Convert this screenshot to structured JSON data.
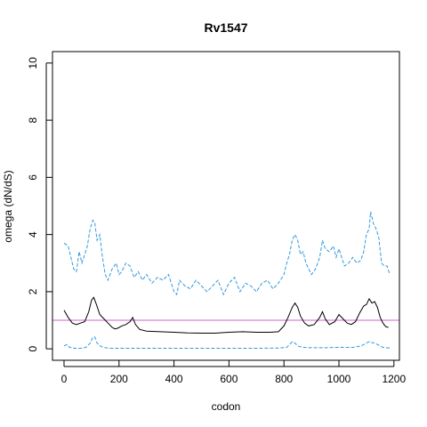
{
  "chart_data": {
    "type": "line",
    "title": "Rv1547",
    "xlabel": "codon",
    "ylabel": "omega (dN/dS)",
    "xlim": [
      -42,
      1220
    ],
    "ylim": [
      -0.4,
      10.4
    ],
    "x_ticks": [
      0,
      200,
      400,
      600,
      800,
      1000,
      1200
    ],
    "y_ticks": [
      0,
      2,
      4,
      6,
      8,
      10
    ],
    "grid": false,
    "legend": "none",
    "reference_line": {
      "y": 1,
      "color": "#cc66cc"
    },
    "colors": {
      "estimate": "#000000",
      "upper": "#3399dd",
      "lower": "#3399dd",
      "axis": "#000000"
    },
    "series": [
      {
        "role": "estimate",
        "style": "solid",
        "x": [
          0,
          15,
          30,
          45,
          60,
          75,
          90,
          100,
          108,
          118,
          130,
          145,
          160,
          175,
          185,
          195,
          210,
          225,
          240,
          250,
          260,
          275,
          300,
          350,
          400,
          450,
          500,
          550,
          600,
          650,
          700,
          750,
          780,
          800,
          815,
          830,
          840,
          850,
          860,
          875,
          890,
          910,
          930,
          940,
          950,
          965,
          985,
          1000,
          1015,
          1030,
          1045,
          1060,
          1075,
          1090,
          1100,
          1110,
          1120,
          1130,
          1140,
          1150,
          1160,
          1170,
          1180
        ],
        "y": [
          1.35,
          1.1,
          0.9,
          0.85,
          0.9,
          0.95,
          1.3,
          1.7,
          1.8,
          1.55,
          1.2,
          1.05,
          0.9,
          0.75,
          0.7,
          0.72,
          0.8,
          0.85,
          0.95,
          1.1,
          0.85,
          0.68,
          0.62,
          0.6,
          0.58,
          0.56,
          0.55,
          0.55,
          0.58,
          0.6,
          0.58,
          0.58,
          0.6,
          0.8,
          1.1,
          1.45,
          1.6,
          1.45,
          1.15,
          0.9,
          0.8,
          0.85,
          1.1,
          1.3,
          1.05,
          0.85,
          0.95,
          1.2,
          1.05,
          0.9,
          0.85,
          0.95,
          1.25,
          1.5,
          1.55,
          1.75,
          1.6,
          1.65,
          1.45,
          1.1,
          0.9,
          0.78,
          0.75
        ]
      },
      {
        "role": "upper",
        "style": "dashed",
        "x": [
          0,
          15,
          25,
          35,
          45,
          55,
          65,
          75,
          85,
          95,
          105,
          112,
          120,
          130,
          140,
          150,
          160,
          175,
          190,
          200,
          210,
          225,
          240,
          255,
          270,
          285,
          300,
          320,
          340,
          360,
          380,
          400,
          410,
          420,
          440,
          460,
          480,
          500,
          520,
          540,
          560,
          580,
          600,
          620,
          640,
          660,
          680,
          700,
          720,
          740,
          760,
          780,
          800,
          810,
          820,
          830,
          840,
          850,
          860,
          870,
          880,
          890,
          900,
          915,
          930,
          940,
          950,
          965,
          980,
          990,
          1000,
          1010,
          1020,
          1035,
          1050,
          1065,
          1080,
          1090,
          1100,
          1110,
          1115,
          1125,
          1135,
          1145,
          1155,
          1165,
          1175,
          1185
        ],
        "y": [
          3.7,
          3.6,
          3.2,
          2.8,
          2.7,
          3.4,
          3.0,
          3.3,
          3.6,
          4.2,
          4.5,
          4.4,
          3.8,
          4.0,
          3.2,
          2.6,
          2.4,
          2.8,
          3.0,
          2.6,
          2.7,
          3.0,
          2.9,
          2.5,
          2.7,
          2.4,
          2.6,
          2.3,
          2.5,
          2.4,
          2.6,
          2.0,
          1.9,
          2.4,
          2.2,
          2.1,
          2.4,
          2.2,
          2.0,
          2.2,
          2.4,
          1.9,
          2.3,
          2.5,
          2.0,
          2.3,
          2.2,
          2.0,
          2.3,
          2.4,
          2.1,
          2.3,
          2.6,
          3.0,
          3.3,
          3.8,
          4.0,
          3.8,
          3.3,
          3.4,
          3.0,
          2.8,
          2.6,
          2.8,
          3.2,
          3.8,
          3.5,
          3.4,
          3.6,
          3.2,
          3.5,
          3.2,
          2.9,
          3.0,
          3.2,
          3.0,
          3.1,
          3.4,
          4.0,
          4.2,
          4.8,
          4.4,
          4.2,
          3.9,
          3.0,
          2.9,
          2.9,
          2.6
        ]
      },
      {
        "role": "lower",
        "style": "dashed",
        "x": [
          0,
          10,
          20,
          40,
          60,
          80,
          95,
          105,
          112,
          120,
          135,
          150,
          170,
          200,
          250,
          300,
          400,
          500,
          600,
          700,
          780,
          810,
          820,
          830,
          840,
          850,
          870,
          900,
          950,
          1000,
          1050,
          1080,
          1100,
          1110,
          1120,
          1130,
          1140,
          1160,
          1185
        ],
        "y": [
          0.1,
          0.15,
          0.05,
          0.02,
          0.02,
          0.05,
          0.2,
          0.4,
          0.42,
          0.2,
          0.08,
          0.04,
          0.02,
          0.02,
          0.02,
          0.02,
          0.02,
          0.02,
          0.02,
          0.02,
          0.03,
          0.05,
          0.15,
          0.25,
          0.2,
          0.1,
          0.05,
          0.04,
          0.04,
          0.05,
          0.05,
          0.1,
          0.2,
          0.25,
          0.22,
          0.2,
          0.15,
          0.05,
          0.03
        ]
      }
    ]
  }
}
